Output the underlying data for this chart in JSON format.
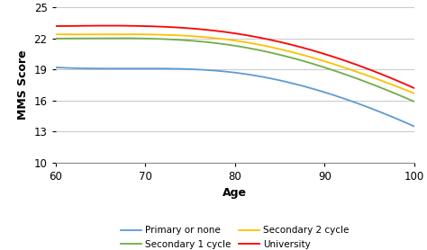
{
  "title": "",
  "xlabel": "Age",
  "ylabel": "MMS Score",
  "xlim": [
    60,
    100
  ],
  "ylim": [
    10,
    25
  ],
  "yticks": [
    10,
    13,
    16,
    19,
    22,
    25
  ],
  "xticks": [
    60,
    70,
    80,
    90,
    100
  ],
  "series": [
    {
      "label": "Primary or none",
      "color": "#5B9BD5",
      "y60": 19.2,
      "y70": 19.1,
      "y80": 18.7,
      "y90": 16.8,
      "y100": 13.5
    },
    {
      "label": "Secondary 1 cycle",
      "color": "#70AD47",
      "y60": 22.0,
      "y70": 22.0,
      "y80": 21.3,
      "y90": 19.2,
      "y100": 15.9
    },
    {
      "label": "Secondary 2 cycle",
      "color": "#FFC000",
      "y60": 22.4,
      "y70": 22.4,
      "y80": 21.8,
      "y90": 19.8,
      "y100": 16.7
    },
    {
      "label": "University",
      "color": "#FF0000",
      "y60": 23.2,
      "y70": 23.2,
      "y80": 22.5,
      "y90": 20.5,
      "y100": 17.2
    }
  ],
  "background_color": "#ffffff",
  "grid_color": "#c8c8c8",
  "legend_fontsize": 7.5,
  "axis_fontsize": 8.5,
  "label_fontsize": 9
}
